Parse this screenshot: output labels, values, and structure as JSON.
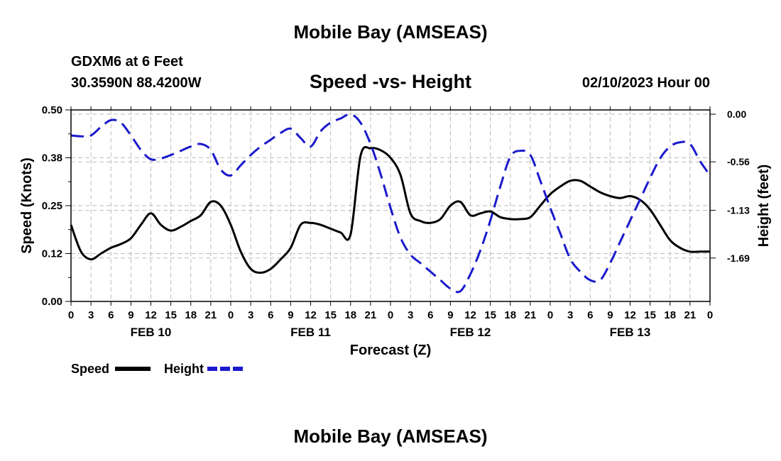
{
  "header": {
    "title": "Mobile Bay (AMSEAS)",
    "station": "GDXM6 at 6 Feet",
    "coords": "30.3590N  88.4200W",
    "subtitle": "Speed -vs- Height",
    "date": "02/10/2023 Hour 00"
  },
  "footer": {
    "title": "Mobile Bay (AMSEAS)"
  },
  "legend": {
    "speed_label": "Speed",
    "height_label": "Height"
  },
  "colors": {
    "speed": "#000000",
    "height": "#1a1acc",
    "grid": "#bbbbbb"
  },
  "chart_data": {
    "type": "line",
    "title": "Speed -vs- Height",
    "xlabel": "Forecast (Z)",
    "ylabel": "Speed (Knots)",
    "y2label": "Height (feet)",
    "x_unit": "hours from 02/10/2023 00Z",
    "xlim": [
      0,
      96
    ],
    "ylim": [
      0,
      0.5
    ],
    "y2lim": [
      -2.2,
      0.05
    ],
    "yticks": [
      "0.00",
      "0.12",
      "0.25",
      "0.38",
      "0.50"
    ],
    "y2ticks": [
      {
        "value": 0,
        "label": "0.00"
      },
      {
        "value": -0.56,
        "label": "-0.56"
      },
      {
        "value": -1.13,
        "label": "-1.13"
      },
      {
        "value": -1.69,
        "label": "-1.69"
      }
    ],
    "xtick_labels": [
      "0",
      "3",
      "6",
      "9",
      "12",
      "15",
      "18",
      "21",
      "0",
      "3",
      "6",
      "9",
      "12",
      "15",
      "18",
      "21",
      "0",
      "3",
      "6",
      "9",
      "12",
      "15",
      "18",
      "21",
      "0",
      "3",
      "6",
      "9",
      "12",
      "15",
      "18",
      "21",
      "0"
    ],
    "day_labels": [
      {
        "hour": 12,
        "label": "FEB 10"
      },
      {
        "hour": 36,
        "label": "FEB 11"
      },
      {
        "hour": 60,
        "label": "FEB 12"
      },
      {
        "hour": 84,
        "label": "FEB 13"
      }
    ],
    "grid": true,
    "series": [
      {
        "name": "Speed",
        "axis": "left",
        "x": [
          0,
          1.5,
          3,
          4.5,
          6,
          7.5,
          9,
          10.5,
          12,
          13.5,
          15,
          16.5,
          18,
          19.5,
          21,
          22.5,
          24,
          25.5,
          27,
          28.5,
          30,
          31.5,
          33,
          34.5,
          36,
          37.5,
          39,
          40.5,
          42,
          43.5,
          45,
          46.5,
          48,
          49.5,
          51,
          52.5,
          54,
          55.5,
          57,
          58.5,
          60,
          61.5,
          63,
          64.5,
          66,
          67.5,
          69,
          70.5,
          72,
          73.5,
          75,
          76.5,
          78,
          79.5,
          81,
          82.5,
          84,
          85.5,
          87,
          88.5,
          90,
          91.5,
          93,
          94.5,
          96
        ],
        "values": [
          0.2,
          0.13,
          0.11,
          0.125,
          0.14,
          0.15,
          0.165,
          0.2,
          0.23,
          0.2,
          0.185,
          0.195,
          0.21,
          0.225,
          0.26,
          0.25,
          0.2,
          0.13,
          0.085,
          0.075,
          0.085,
          0.11,
          0.14,
          0.2,
          0.205,
          0.2,
          0.19,
          0.18,
          0.175,
          0.38,
          0.4,
          0.395,
          0.375,
          0.33,
          0.23,
          0.21,
          0.205,
          0.215,
          0.25,
          0.26,
          0.225,
          0.23,
          0.235,
          0.22,
          0.215,
          0.215,
          0.22,
          0.25,
          0.28,
          0.3,
          0.315,
          0.315,
          0.3,
          0.285,
          0.275,
          0.27,
          0.275,
          0.265,
          0.24,
          0.2,
          0.16,
          0.14,
          0.13,
          0.13,
          0.13
        ]
      },
      {
        "name": "Height",
        "axis": "right",
        "x": [
          0,
          1.5,
          3,
          4.5,
          6,
          7.5,
          9,
          10.5,
          12,
          13.5,
          15,
          16.5,
          18,
          19.5,
          21,
          22.5,
          24,
          25.5,
          27,
          28.5,
          30,
          31.5,
          33,
          34.5,
          36,
          37.5,
          39,
          40.5,
          42,
          43.5,
          45,
          46.5,
          48,
          49.5,
          51,
          52.5,
          54,
          55.5,
          57,
          58.5,
          60,
          61.5,
          63,
          64.5,
          66,
          67.5,
          69,
          70.5,
          72,
          73.5,
          75,
          76.5,
          78,
          79.5,
          81,
          82.5,
          84,
          85.5,
          87,
          88.5,
          90,
          91.5,
          93,
          94.5,
          96
        ],
        "values": [
          -0.25,
          -0.26,
          -0.25,
          -0.15,
          -0.07,
          -0.1,
          -0.25,
          -0.42,
          -0.53,
          -0.52,
          -0.48,
          -0.43,
          -0.38,
          -0.35,
          -0.42,
          -0.65,
          -0.72,
          -0.6,
          -0.48,
          -0.38,
          -0.3,
          -0.22,
          -0.17,
          -0.28,
          -0.38,
          -0.2,
          -0.1,
          -0.05,
          0.0,
          -0.1,
          -0.35,
          -0.7,
          -1.1,
          -1.45,
          -1.65,
          -1.75,
          -1.85,
          -1.95,
          -2.05,
          -2.08,
          -1.88,
          -1.6,
          -1.25,
          -0.85,
          -0.5,
          -0.43,
          -0.48,
          -0.78,
          -1.1,
          -1.4,
          -1.7,
          -1.85,
          -1.95,
          -1.95,
          -1.75,
          -1.5,
          -1.25,
          -1.0,
          -0.75,
          -0.52,
          -0.38,
          -0.33,
          -0.35,
          -0.55,
          -0.72
        ]
      }
    ]
  }
}
